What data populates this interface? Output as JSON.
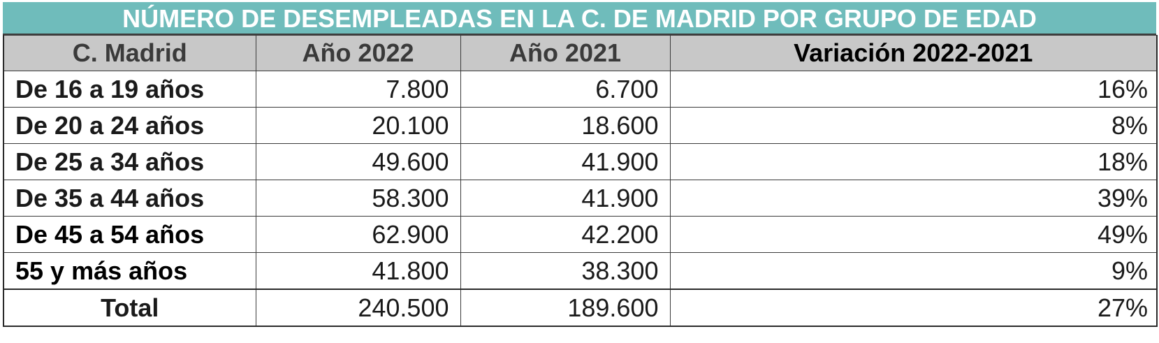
{
  "chart_data": {
    "type": "table",
    "title": "NÚMERO DE DESEMPLEADAS EN LA C. DE MADRID POR GRUPO DE EDAD",
    "columns": [
      "C. Madrid",
      "Año 2022",
      "Año 2021",
      "Variación 2022-2021"
    ],
    "rows": [
      {
        "label": "De 16 a 19 años",
        "y2022": "7.800",
        "y2021": "6.700",
        "variation": "16%"
      },
      {
        "label": "De 20 a 24 años",
        "y2022": "20.100",
        "y2021": "18.600",
        "variation": "8%"
      },
      {
        "label": "De 25 a 34 años",
        "y2022": "49.600",
        "y2021": "41.900",
        "variation": "18%"
      },
      {
        "label": "De 35 a 44 años",
        "y2022": "58.300",
        "y2021": "41.900",
        "variation": "39%"
      },
      {
        "label": "De 45 a 54 años",
        "y2022": "62.900",
        "y2021": "42.200",
        "variation": "49%"
      },
      {
        "label": "55 y más años",
        "y2022": "41.800",
        "y2021": "38.300",
        "variation": "9%"
      }
    ],
    "total": {
      "label": "Total",
      "y2022": "240.500",
      "y2021": "189.600",
      "variation": "27%"
    }
  },
  "colors": {
    "title_background": "#6fbcbb",
    "title_text": "#ffffff",
    "header_background": "#c8c8c8",
    "grid_lines": "#3a3a3a"
  }
}
